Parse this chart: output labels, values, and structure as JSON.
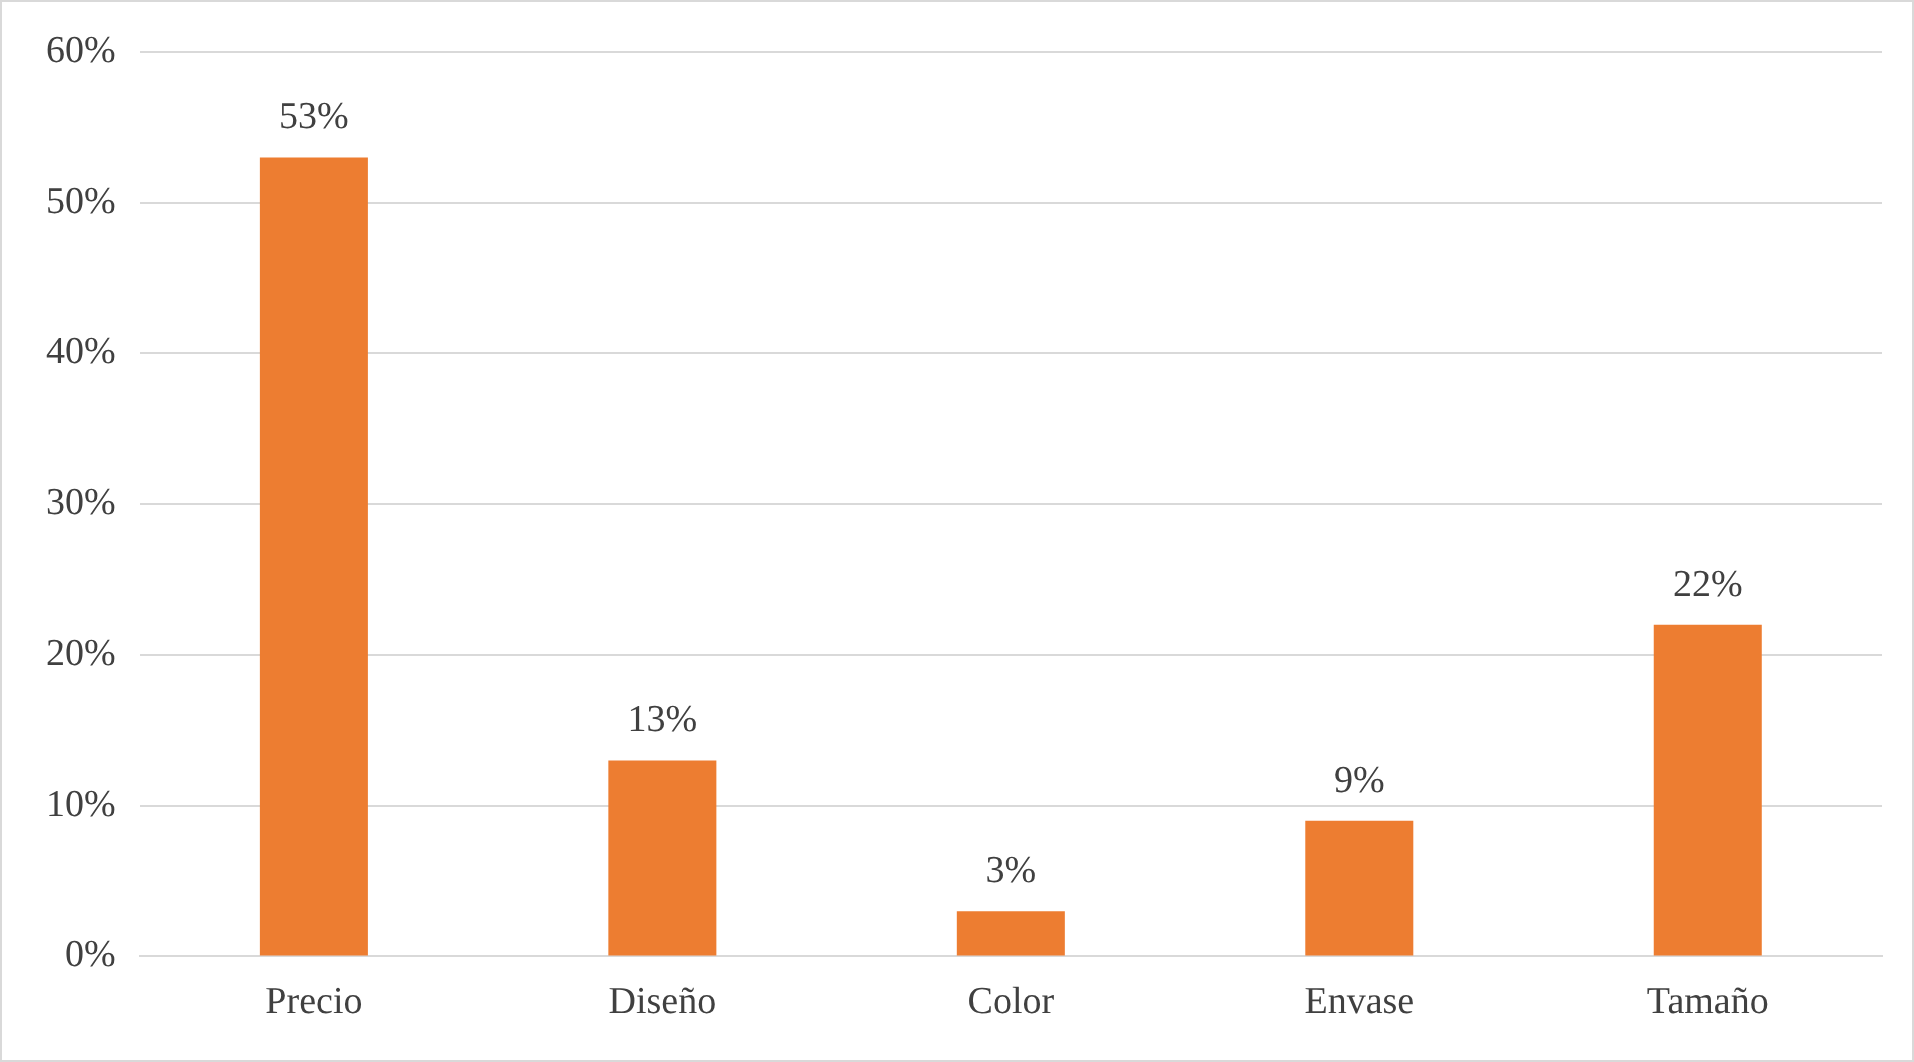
{
  "chart_data": {
    "type": "bar",
    "categories": [
      "Precio",
      "Diseño",
      "Color",
      "Envase",
      "Tamaño"
    ],
    "values": [
      53,
      13,
      3,
      9,
      22
    ],
    "value_labels": [
      "53%",
      "13%",
      "3%",
      "9%",
      "22%"
    ],
    "color": "#ed7d31",
    "ylim": [
      0,
      60
    ],
    "yticks": [
      {
        "value": 0,
        "label": "0%"
      },
      {
        "value": 10,
        "label": "10%"
      },
      {
        "value": 20,
        "label": "20%"
      },
      {
        "value": 30,
        "label": "30%"
      },
      {
        "value": 40,
        "label": "40%"
      },
      {
        "value": 50,
        "label": "50%"
      },
      {
        "value": 60,
        "label": "60%"
      }
    ],
    "grid": "y"
  }
}
